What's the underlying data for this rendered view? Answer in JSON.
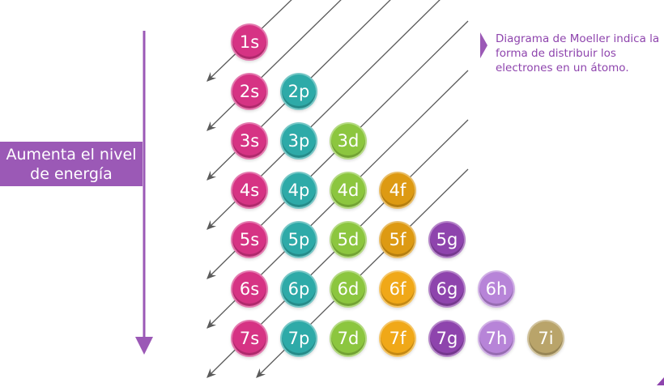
{
  "level_label": {
    "line1": "Aumenta el nivel",
    "line2": "de energía"
  },
  "note": "Diagrama de Moeller indica la forma de distribuir los electrones en un átomo.",
  "colors": {
    "s": "#d63384",
    "p": "#2eaaa8",
    "d": "#8cc63f",
    "f": "#f0a818",
    "f_alt": "#dd9a13",
    "g": "#8e44ad",
    "h": "#b784d8",
    "i": "#b9a46a",
    "axis": "#9b59b6",
    "diagonal": "#5a5a5a"
  },
  "rows": [
    {
      "level": 1,
      "orbitals": [
        "1s"
      ]
    },
    {
      "level": 2,
      "orbitals": [
        "2s",
        "2p"
      ]
    },
    {
      "level": 3,
      "orbitals": [
        "3s",
        "3p",
        "3d"
      ]
    },
    {
      "level": 4,
      "orbitals": [
        "4s",
        "4p",
        "4d",
        "4f"
      ]
    },
    {
      "level": 5,
      "orbitals": [
        "5s",
        "5p",
        "5d",
        "5f",
        "5g"
      ]
    },
    {
      "level": 6,
      "orbitals": [
        "6s",
        "6p",
        "6d",
        "6f",
        "6g",
        "6h"
      ]
    },
    {
      "level": 7,
      "orbitals": [
        "7s",
        "7p",
        "7d",
        "7f",
        "7g",
        "7h",
        "7i"
      ]
    }
  ]
}
